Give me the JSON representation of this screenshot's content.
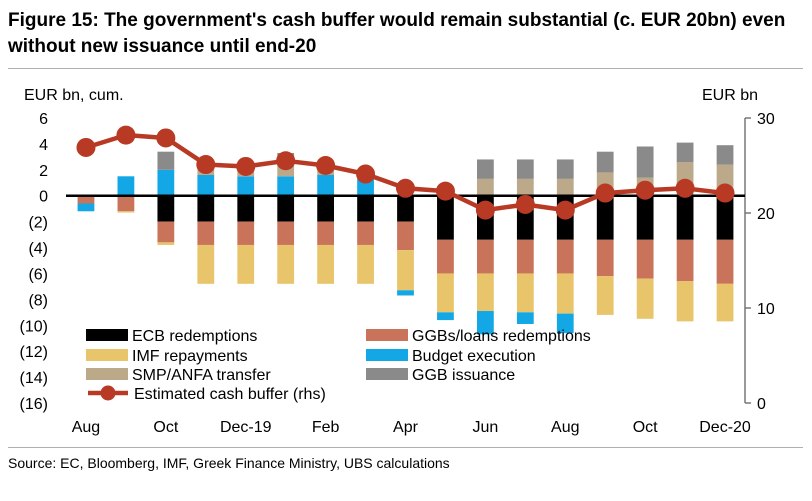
{
  "header": {
    "title": "Figure 15: The government's cash buffer would remain substantial (c. EUR 20bn) even without new issuance until end-20"
  },
  "footer": {
    "source": "Source:  EC, Bloomberg, IMF, Greek Finance Ministry, UBS calculations"
  },
  "chart_data": {
    "type": "bar",
    "stacked": true,
    "left_axis": {
      "label": "EUR bn, cum.",
      "range": [
        -16,
        6
      ],
      "ticks": [
        "6",
        "4",
        "2",
        "0",
        "(2)",
        "(4)",
        "(6)",
        "(8)",
        "(10)",
        "(12)",
        "(14)",
        "(16)"
      ]
    },
    "right_axis": {
      "label": "EUR bn",
      "range": [
        0,
        30
      ],
      "ticks": [
        "30",
        "20",
        "10",
        "0"
      ]
    },
    "x_tick_labels": [
      "Aug",
      "Oct",
      "Dec-19",
      "Feb",
      "Apr",
      "Jun",
      "Aug",
      "Oct",
      "Dec-20"
    ],
    "x_tick_positions": [
      0,
      2,
      4,
      6,
      8,
      10,
      12,
      14,
      16
    ],
    "bar_series": [
      {
        "name": "ECB redemptions",
        "color": "#000000",
        "values": [
          0,
          0,
          -2.0,
          -2.0,
          -2.0,
          -2.0,
          -2.0,
          -2.0,
          -2.0,
          -3.4,
          -3.4,
          -3.4,
          -3.4,
          -3.4,
          -3.4,
          -3.4,
          -3.4
        ]
      },
      {
        "name": "GGBs/loans redemptions",
        "color": "#c8735a",
        "values": [
          -0.6,
          -1.2,
          -1.6,
          -1.8,
          -1.8,
          -1.8,
          -1.8,
          -1.8,
          -2.2,
          -2.6,
          -2.6,
          -2.6,
          -2.6,
          -2.8,
          -3.0,
          -3.2,
          -3.4
        ]
      },
      {
        "name": "IMF repayments",
        "color": "#e8c46a",
        "values": [
          0,
          -0.1,
          -0.2,
          -3.0,
          -3.0,
          -3.0,
          -3.0,
          -3.0,
          -3.1,
          -3.0,
          -2.9,
          -3.0,
          -3.1,
          -3.0,
          -3.1,
          -3.1,
          -2.9
        ]
      },
      {
        "name": "Budget execution",
        "color": "#14a7e6",
        "values": [
          -0.6,
          1.5,
          2.0,
          1.6,
          1.5,
          1.5,
          1.6,
          1.3,
          -0.4,
          -0.6,
          -1.8,
          -0.9,
          -1.5,
          0,
          0,
          0,
          0
        ]
      },
      {
        "name": "SMP/ANFA transfer",
        "color": "#bca98a",
        "values": [
          0,
          0,
          0,
          0.6,
          0.5,
          1.2,
          0.6,
          0.4,
          0,
          0,
          1.3,
          1.3,
          1.3,
          1.8,
          1.4,
          2.6,
          2.4
        ]
      },
      {
        "name": "GGB issuance",
        "color": "#8a8a8a",
        "values": [
          0,
          0,
          1.4,
          0.5,
          0.5,
          0.6,
          0.5,
          0.3,
          0,
          0,
          1.5,
          1.5,
          1.5,
          1.6,
          2.4,
          1.5,
          1.5
        ]
      }
    ],
    "line_series": {
      "name": "Estimated cash buffer (rhs)",
      "color": "#b83a24",
      "axis": "right",
      "values": [
        26.9,
        28.2,
        27.9,
        25.1,
        24.9,
        25.5,
        25.0,
        24.1,
        22.6,
        22.3,
        20.3,
        20.9,
        20.3,
        22.1,
        22.4,
        22.6,
        22.1
      ]
    },
    "legend": [
      {
        "label": "ECB redemptions",
        "kind": "bar",
        "color": "#000000"
      },
      {
        "label": "GGBs/loans redemptions",
        "kind": "bar",
        "color": "#c8735a"
      },
      {
        "label": "IMF repayments",
        "kind": "bar",
        "color": "#e8c46a"
      },
      {
        "label": "Budget execution",
        "kind": "bar",
        "color": "#14a7e6"
      },
      {
        "label": "SMP/ANFA transfer",
        "kind": "bar",
        "color": "#bca98a"
      },
      {
        "label": "GGB issuance",
        "kind": "bar",
        "color": "#8a8a8a"
      },
      {
        "label": "Estimated cash buffer (rhs)",
        "kind": "line",
        "color": "#b83a24"
      }
    ],
    "legend_placement": "lower-left"
  }
}
